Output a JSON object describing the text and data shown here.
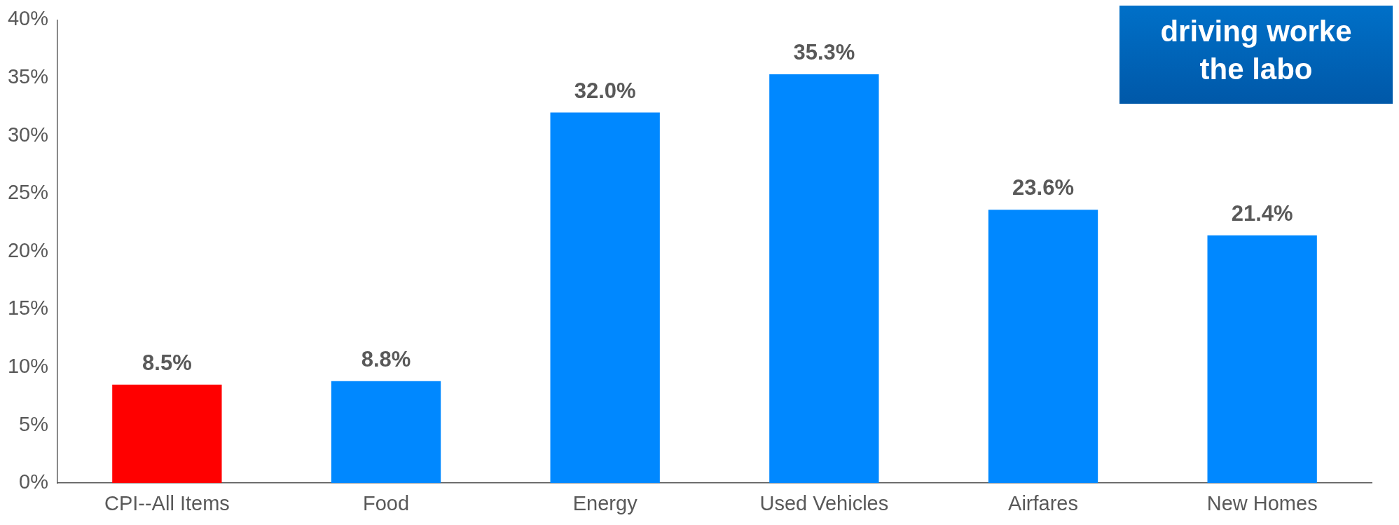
{
  "chart_data": {
    "type": "bar",
    "categories": [
      "CPI--All Items",
      "Food",
      "Energy",
      "Used Vehicles",
      "Airfares",
      "New Homes"
    ],
    "values": [
      8.5,
      8.8,
      32.0,
      35.3,
      23.6,
      21.4
    ],
    "colors": [
      "#ff0000",
      "#0088ff",
      "#0088ff",
      "#0088ff",
      "#0088ff",
      "#0088ff"
    ],
    "value_labels": [
      "8.5%",
      "8.8%",
      "32.0%",
      "35.3%",
      "23.6%",
      "21.4%"
    ],
    "ylim": [
      0,
      40
    ],
    "yticks": [
      {
        "value": 0,
        "label": "0%"
      },
      {
        "value": 5,
        "label": "5%"
      },
      {
        "value": 10,
        "label": "10%"
      },
      {
        "value": 15,
        "label": "15%"
      },
      {
        "value": 20,
        "label": "20%"
      },
      {
        "value": 25,
        "label": "25%"
      },
      {
        "value": 30,
        "label": "30%"
      },
      {
        "value": 35,
        "label": "35%"
      },
      {
        "value": 40,
        "label": "40%"
      }
    ],
    "annotations": [
      "driving worke",
      "the labo"
    ],
    "grid": false,
    "legend": false
  }
}
